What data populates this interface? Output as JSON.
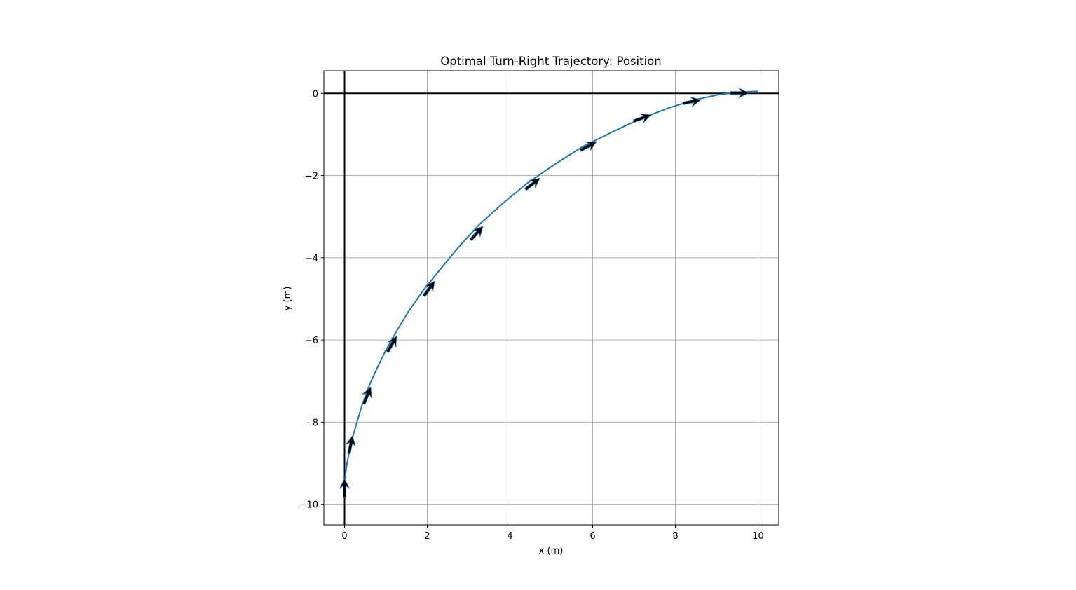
{
  "chart_data": {
    "type": "line",
    "title": "Optimal Turn-Right Trajectory: Position",
    "xlabel": "x (m)",
    "ylabel": "y (m)",
    "xlim": [
      -0.5,
      10.5
    ],
    "ylim": [
      -10.5,
      0.55
    ],
    "xticks": [
      0,
      2,
      4,
      6,
      8,
      10
    ],
    "yticks": [
      0,
      -2,
      -4,
      -6,
      -8,
      -10
    ],
    "xtick_labels": [
      "0",
      "2",
      "4",
      "6",
      "8",
      "10"
    ],
    "ytick_labels": [
      "0",
      "−2",
      "−4",
      "−6",
      "−8",
      "−10"
    ],
    "grid": true,
    "reference_lines": {
      "x": 0,
      "y": 0,
      "color": "#000000"
    },
    "series": [
      {
        "color": "#1f77b4",
        "x": [
          0.0,
          0.02,
          0.06,
          0.12,
          0.2,
          0.3,
          0.42,
          0.58,
          0.78,
          1.0,
          1.25,
          1.55,
          1.9,
          2.3,
          2.75,
          3.25,
          3.8,
          4.4,
          5.05,
          5.75,
          6.45,
          7.15,
          7.85,
          8.5,
          9.05,
          9.45,
          9.75,
          10.0
        ],
        "y": [
          -9.6,
          -9.3,
          -9.0,
          -8.7,
          -8.35,
          -8.0,
          -7.6,
          -7.15,
          -6.7,
          -6.25,
          -5.8,
          -5.3,
          -4.8,
          -4.3,
          -3.75,
          -3.2,
          -2.7,
          -2.2,
          -1.75,
          -1.3,
          -0.95,
          -0.62,
          -0.35,
          -0.15,
          -0.03,
          0.02,
          0.04,
          0.05
        ]
      }
    ],
    "arrows": [
      {
        "x": 0.0,
        "y": -9.6,
        "dx": 0.0,
        "dy": 1.0
      },
      {
        "x": 0.15,
        "y": -8.55,
        "dx": 0.2,
        "dy": 1.0
      },
      {
        "x": 0.55,
        "y": -7.35,
        "dx": 0.42,
        "dy": 1.0
      },
      {
        "x": 1.15,
        "y": -6.1,
        "dx": 0.58,
        "dy": 1.0
      },
      {
        "x": 2.05,
        "y": -4.75,
        "dx": 0.72,
        "dy": 1.0
      },
      {
        "x": 3.2,
        "y": -3.4,
        "dx": 0.9,
        "dy": 1.0
      },
      {
        "x": 4.55,
        "y": -2.2,
        "dx": 1.0,
        "dy": 0.78
      },
      {
        "x": 5.9,
        "y": -1.28,
        "dx": 1.0,
        "dy": 0.55
      },
      {
        "x": 7.2,
        "y": -0.6,
        "dx": 1.0,
        "dy": 0.36
      },
      {
        "x": 8.4,
        "y": -0.2,
        "dx": 1.0,
        "dy": 0.2
      },
      {
        "x": 9.55,
        "y": 0.01,
        "dx": 1.0,
        "dy": 0.0
      }
    ],
    "arrow_color": "#000000"
  }
}
